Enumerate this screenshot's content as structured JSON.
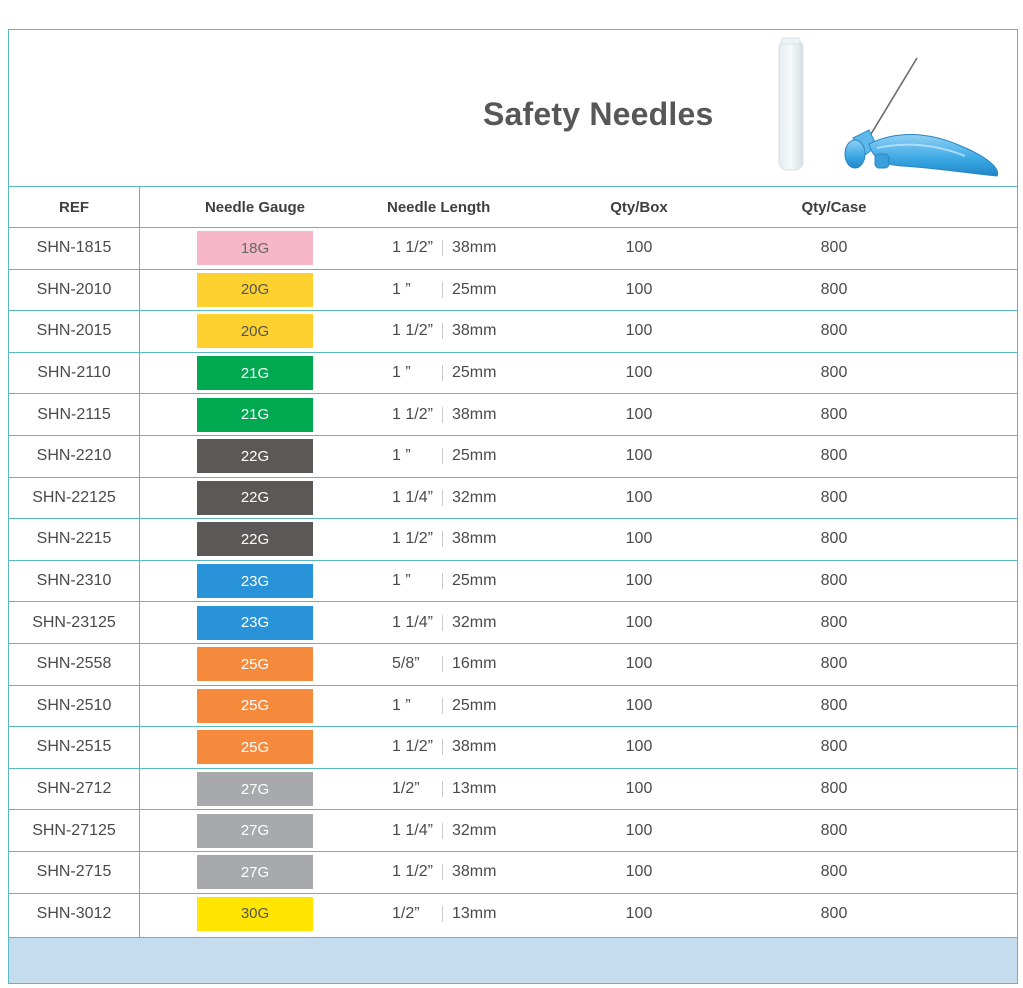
{
  "title": "Safety Needles",
  "product_image": "safety-needle-with-cap",
  "columns": {
    "ref": "REF",
    "gauge": "Needle Gauge",
    "length": "Needle Length",
    "qty_box": "Qty/Box",
    "qty_case": "Qty/Case"
  },
  "rows": [
    {
      "ref": "SHN-1815",
      "gauge": "18G",
      "color": "#f6b8c8",
      "text_color": "#666666",
      "len_in": "1 1/2”",
      "len_mm": "38mm",
      "qty_box": "100",
      "qty_case": "800"
    },
    {
      "ref": "SHN-2010",
      "gauge": "20G",
      "color": "#fdd12f",
      "text_color": "#555555",
      "len_in": "1 ”",
      "len_mm": "25mm",
      "qty_box": "100",
      "qty_case": "800"
    },
    {
      "ref": "SHN-2015",
      "gauge": "20G",
      "color": "#fdd12f",
      "text_color": "#555555",
      "len_in": "1 1/2”",
      "len_mm": "38mm",
      "qty_box": "100",
      "qty_case": "800"
    },
    {
      "ref": "SHN-2110",
      "gauge": "21G",
      "color": "#00a84f",
      "text_color": "#ffffff",
      "len_in": "1 ”",
      "len_mm": "25mm",
      "qty_box": "100",
      "qty_case": "800"
    },
    {
      "ref": "SHN-2115",
      "gauge": "21G",
      "color": "#00a84f",
      "text_color": "#ffffff",
      "len_in": "1 1/2”",
      "len_mm": "38mm",
      "qty_box": "100",
      "qty_case": "800"
    },
    {
      "ref": "SHN-2210",
      "gauge": "22G",
      "color": "#5b5856",
      "text_color": "#ffffff",
      "len_in": "1 ”",
      "len_mm": "25mm",
      "qty_box": "100",
      "qty_case": "800"
    },
    {
      "ref": "SHN-22125",
      "gauge": "22G",
      "color": "#5b5856",
      "text_color": "#ffffff",
      "len_in": "1 1/4”",
      "len_mm": "32mm",
      "qty_box": "100",
      "qty_case": "800"
    },
    {
      "ref": "SHN-2215",
      "gauge": "22G",
      "color": "#5b5856",
      "text_color": "#ffffff",
      "len_in": "1 1/2”",
      "len_mm": "38mm",
      "qty_box": "100",
      "qty_case": "800"
    },
    {
      "ref": "SHN-2310",
      "gauge": "23G",
      "color": "#2893d8",
      "text_color": "#ffffff",
      "len_in": "1 ”",
      "len_mm": "25mm",
      "qty_box": "100",
      "qty_case": "800"
    },
    {
      "ref": "SHN-23125",
      "gauge": "23G",
      "color": "#2893d8",
      "text_color": "#ffffff",
      "len_in": "1 1/4”",
      "len_mm": "32mm",
      "qty_box": "100",
      "qty_case": "800"
    },
    {
      "ref": "SHN-2558",
      "gauge": "25G",
      "color": "#f58a3d",
      "text_color": "#ffffff",
      "len_in": "5/8”",
      "len_mm": "16mm",
      "qty_box": "100",
      "qty_case": "800"
    },
    {
      "ref": "SHN-2510",
      "gauge": "25G",
      "color": "#f58a3d",
      "text_color": "#ffffff",
      "len_in": "1 ”",
      "len_mm": "25mm",
      "qty_box": "100",
      "qty_case": "800"
    },
    {
      "ref": "SHN-2515",
      "gauge": "25G",
      "color": "#f58a3d",
      "text_color": "#ffffff",
      "len_in": "1 1/2”",
      "len_mm": "38mm",
      "qty_box": "100",
      "qty_case": "800"
    },
    {
      "ref": "SHN-2712",
      "gauge": "27G",
      "color": "#a7a9ac",
      "text_color": "#ffffff",
      "len_in": "1/2”",
      "len_mm": "13mm",
      "qty_box": "100",
      "qty_case": "800"
    },
    {
      "ref": "SHN-27125",
      "gauge": "27G",
      "color": "#a7a9ac",
      "text_color": "#ffffff",
      "len_in": "1 1/4”",
      "len_mm": "32mm",
      "qty_box": "100",
      "qty_case": "800"
    },
    {
      "ref": "SHN-2715",
      "gauge": "27G",
      "color": "#a7a9ac",
      "text_color": "#ffffff",
      "len_in": "1 1/2”",
      "len_mm": "38mm",
      "qty_box": "100",
      "qty_case": "800"
    },
    {
      "ref": "SHN-3012",
      "gauge": "30G",
      "color": "#ffe500",
      "text_color": "#555555",
      "len_in": "1/2”",
      "len_mm": "13mm",
      "qty_box": "100",
      "qty_case": "800"
    }
  ]
}
